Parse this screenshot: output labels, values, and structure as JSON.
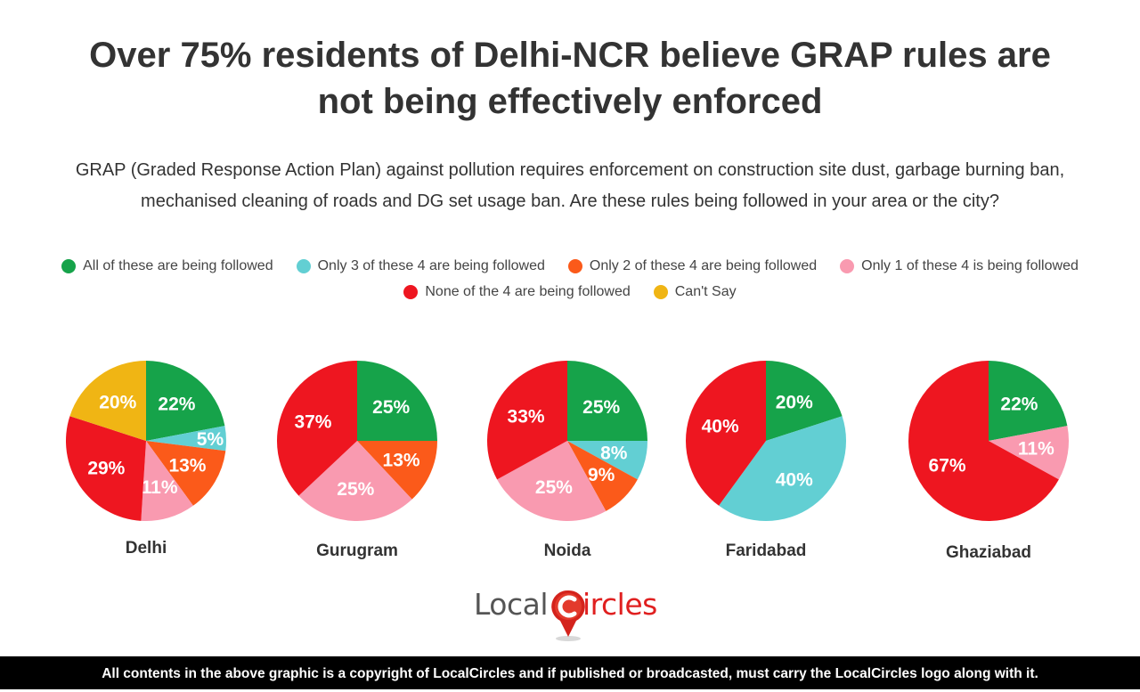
{
  "title_line1": "Over 75% residents of Delhi-NCR believe GRAP rules are",
  "title_line2": "not being effectively enforced",
  "subtitle_line1": "GRAP (Graded Response Action Plan) against pollution requires enforcement on construction site dust, garbage burning ban,",
  "subtitle_line2": "mechanised cleaning of roads and DG set usage ban. Are these rules being followed in your area or the city?",
  "legend": [
    {
      "label": "All of these are being followed",
      "color": "#16a34a"
    },
    {
      "label": "Only 3 of these 4 are being followed",
      "color": "#62cfd3"
    },
    {
      "label": "Only 2 of these 4 are being followed",
      "color": "#fb5a1a"
    },
    {
      "label": "Only 1 of these 4 is being followed",
      "color": "#f99ab0"
    },
    {
      "label": "None of the 4 are being followed",
      "color": "#ee1620"
    },
    {
      "label": "Can't Say",
      "color": "#f0b514"
    }
  ],
  "chart_data": {
    "type": "pie",
    "title": "Over 75% residents of Delhi-NCR believe GRAP rules are not being effectively enforced",
    "categories": [
      "All of these are being followed",
      "Only 3 of these 4 are being followed",
      "Only 2 of these 4 are being followed",
      "Only 1 of these 4 is being followed",
      "None of the 4 are being followed",
      "Can't Say"
    ],
    "colors": [
      "#16a34a",
      "#62cfd3",
      "#fb5a1a",
      "#f99ab0",
      "#ee1620",
      "#f0b514"
    ],
    "legend_position": "top",
    "series": [
      {
        "name": "Delhi",
        "values": [
          22,
          5,
          13,
          11,
          29,
          20
        ]
      },
      {
        "name": "Gurugram",
        "values": [
          25,
          0,
          13,
          25,
          37,
          0
        ]
      },
      {
        "name": "Noida",
        "values": [
          25,
          8,
          9,
          25,
          33,
          0
        ]
      },
      {
        "name": "Faridabad",
        "values": [
          20,
          40,
          0,
          0,
          40,
          0
        ]
      },
      {
        "name": "Ghaziabad",
        "values": [
          22,
          0,
          0,
          11,
          67,
          0
        ]
      }
    ]
  },
  "logo": {
    "text_left": "Local",
    "text_right": "ircles"
  },
  "footer": "All contents in the above graphic is a copyright of LocalCircles and if published or broadcasted, must carry the LocalCircles logo along with it."
}
